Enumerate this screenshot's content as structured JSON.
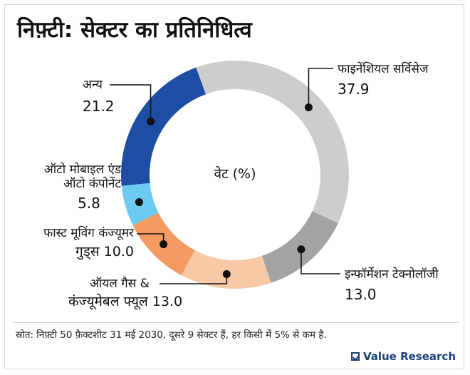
{
  "title": "निफ़्टी: सेक्टर का प्रतिनिधित्व",
  "chart_data": {
    "type": "pie",
    "donut": true,
    "center_label": "वेट (%)",
    "slices": [
      {
        "name": "फाइनेंशियल सर्विसेज",
        "value": 37.9,
        "color": "#cdcdcd"
      },
      {
        "name": "इन्फॉर्मेशन टेक्नोलॉजी",
        "value": 13.0,
        "color": "#a3a3a3"
      },
      {
        "name": "ऑयल गैस & कंज्यूमेबल फ्यूल",
        "value": 13.0,
        "color": "#f8c9a6"
      },
      {
        "name": "फास्ट मूविंग कंज्यूमर गुड्स",
        "value": 10.0,
        "color": "#f49a63"
      },
      {
        "name": "ऑटो मोबाइल एंड ऑटो कंपोनेंट",
        "value": 5.8,
        "color": "#6dcbf1"
      },
      {
        "name": "अन्य",
        "value": 21.2,
        "color": "#1e4ea3"
      }
    ]
  },
  "labels": {
    "fin_name": "फाइनेंशियल सर्विसेज",
    "fin_value": "37.9",
    "it_name": "इन्फॉर्मेशन टेक्नोलॉजी",
    "it_value": "13.0",
    "oil_line1": "ऑयल गैस &",
    "oil_line2": "कंज्यूमेबल फ्यूल 13.0",
    "fmcg_line1": "फास्ट मूविंग कंज्यूमर",
    "fmcg_line2": "गुड्स 10.0",
    "auto_line1": "ऑटो मोबाइल एंड",
    "auto_line2": "ऑटो कंपोनेंट",
    "auto_value": "5.8",
    "other_name": "अन्य",
    "other_value": "21.2"
  },
  "source": "स्रोत: निफ़्टी 50 फ़ैक्टशीट 31 मई 2030, दूसरे 9 सेक्टर हैं, हर किसी में 5% से कम है.",
  "brand": "Value Research"
}
